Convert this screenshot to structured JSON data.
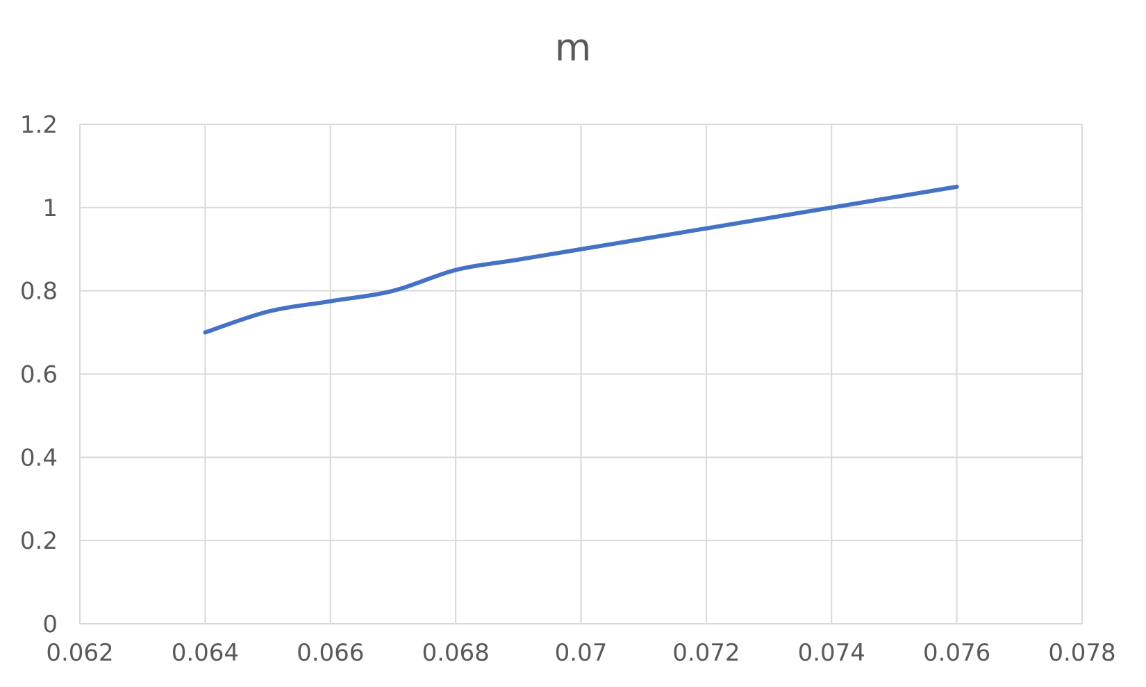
{
  "chart_data": {
    "type": "line",
    "title": "m",
    "xlabel": "",
    "ylabel": "",
    "xlim": [
      0.062,
      0.078
    ],
    "ylim": [
      0,
      1.2
    ],
    "x_ticks": [
      "0.062",
      "0.064",
      "0.066",
      "0.068",
      "0.07",
      "0.072",
      "0.074",
      "0.076",
      "0.078"
    ],
    "y_ticks": [
      "0",
      "0.2",
      "0.4",
      "0.6",
      "0.8",
      "1",
      "1.2"
    ],
    "grid": true,
    "smoothed": true,
    "series": [
      {
        "x": [
          0.064,
          0.065,
          0.066,
          0.067,
          0.068,
          0.069,
          0.07,
          0.071,
          0.072,
          0.073,
          0.074,
          0.075,
          0.076
        ],
        "y": [
          0.7,
          0.75,
          0.775,
          0.8,
          0.85,
          0.875,
          0.9,
          0.925,
          0.95,
          0.975,
          1.0,
          1.025,
          1.05
        ],
        "color": "#4472C4"
      }
    ]
  },
  "colors": {
    "grid": "#d9d9d9",
    "text": "#595959"
  }
}
